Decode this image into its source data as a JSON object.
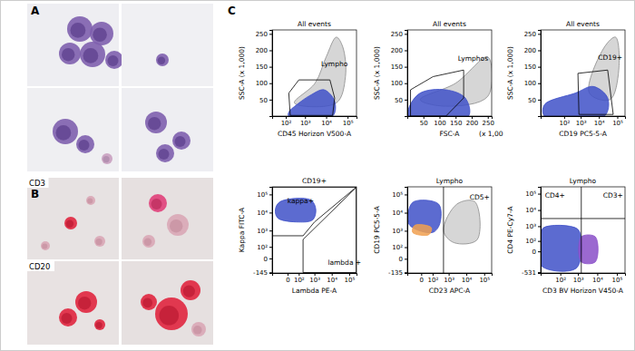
{
  "panels": [
    {
      "label": "A"
    },
    {
      "label": "B",
      "rows": [
        "CD3",
        "CD20"
      ]
    },
    {
      "label": "C"
    }
  ],
  "chart_data": [
    {
      "type": "scatter",
      "title": "All events",
      "xlabel": "CD45 Horizon V500-A",
      "ylabel": "SSC-A (x 1,000)",
      "log": "x",
      "xlim": [
        0,
        262144
      ],
      "ylim": [
        0,
        262
      ],
      "xticks": [
        {
          "value": 100,
          "label": "10²"
        },
        {
          "value": 1000,
          "label": "10³"
        },
        {
          "value": 10000,
          "label": "10⁴"
        },
        {
          "value": 100000,
          "label": "10⁵"
        }
      ],
      "yticks": [
        50,
        100,
        150,
        200,
        250
      ],
      "clouds": [
        {
          "color": "#8a8a8a",
          "x": [
            300,
            3000,
            10000,
            30000,
            60000,
            80000,
            30000
          ],
          "y": [
            40,
            100,
            180,
            240,
            210,
            120,
            40
          ]
        },
        {
          "color": "#3f51c8",
          "x": [
            150,
            20000,
            25000,
            8000,
            2000,
            400,
            150
          ],
          "y": [
            0,
            0,
            45,
            80,
            65,
            35,
            12
          ]
        }
      ],
      "gates": [
        {
          "label": "Lympho",
          "x": [
            180,
            150,
            500,
            15000,
            25000,
            20000,
            180
          ],
          "y": [
            2,
            70,
            110,
            110,
            55,
            2,
            2
          ]
        }
      ]
    },
    {
      "type": "scatter",
      "title": "All events",
      "xlabel": "FSC-A",
      "ylabel": "SSC-A (x 1,000)",
      "annotations": [
        {
          "text": "(x 1,00"
        }
      ],
      "xlim": [
        0,
        262
      ],
      "ylim": [
        0,
        262
      ],
      "xticks": [
        50,
        100,
        150,
        200,
        250
      ],
      "yticks": [
        50,
        100,
        150,
        200,
        250
      ],
      "clouds": [
        {
          "color": "#8a8a8a",
          "x": [
            40,
            150,
            250,
            250,
            120
          ],
          "y": [
            50,
            100,
            180,
            60,
            30
          ]
        },
        {
          "color": "#3f51c8",
          "x": [
            5,
            190,
            180,
            120,
            40,
            5
          ],
          "y": [
            0,
            0,
            55,
            80,
            70,
            25
          ]
        }
      ],
      "gates": [
        {
          "label": "Lymphos",
          "x": [
            10,
            10,
            80,
            175,
            175,
            120,
            10
          ],
          "y": [
            0,
            80,
            120,
            140,
            55,
            0,
            0
          ]
        }
      ]
    },
    {
      "type": "scatter",
      "title": "All events",
      "xlabel": "CD19 PC5-5-A",
      "ylabel": "SSC-A (x 1,000)",
      "log": "x",
      "xlim": [
        -100,
        262144
      ],
      "ylim": [
        0,
        262
      ],
      "xticks": [
        {
          "value": 100,
          "label": "10²"
        },
        {
          "value": 1000,
          "label": "10³"
        },
        {
          "value": 10000,
          "label": "10⁴"
        },
        {
          "value": 100000,
          "label": "10⁵"
        }
      ],
      "yticks": [
        50,
        100,
        150,
        200,
        250
      ],
      "clouds": [
        {
          "color": "#8a8a8a",
          "x": [
            3000,
            20000,
            80000,
            120000,
            40000
          ],
          "y": [
            70,
            210,
            240,
            140,
            50
          ]
        },
        {
          "color": "#3f51c8",
          "x": [
            -50,
            20000,
            30000,
            5000,
            500,
            -50
          ],
          "y": [
            0,
            0,
            55,
            90,
            70,
            35
          ]
        }
      ],
      "gates": [
        {
          "label": "CD19+",
          "x": [
            800,
            700,
            30000,
            60000,
            800
          ],
          "y": [
            5,
            130,
            140,
            5,
            5
          ]
        }
      ]
    },
    {
      "type": "scatter",
      "title": "CD19+",
      "xlabel": "Lambda PE-A",
      "ylabel": "Kappa FITC-A",
      "log": true,
      "xlim": [
        -200,
        262144
      ],
      "ylim": [
        -160,
        262144
      ],
      "xticks": [
        0,
        {
          "value": 100,
          "label": "10²"
        },
        {
          "value": 1000,
          "label": "10³"
        },
        {
          "value": 10000,
          "label": "10⁴"
        },
        {
          "value": 100000,
          "label": "10⁵"
        }
      ],
      "yticks": [
        -145,
        0,
        {
          "value": 100,
          "label": "10²"
        },
        {
          "value": 1000,
          "label": "10³"
        },
        {
          "value": 10000,
          "label": "10⁴"
        },
        {
          "value": 100000,
          "label": "10⁵"
        }
      ],
      "clouds": [
        {
          "color": "#3f51c8",
          "x": [
            -80,
            100,
            800,
            1200,
            600,
            -50,
            -120
          ],
          "y": [
            5000,
            3000,
            4000,
            15000,
            50000,
            40000,
            15000
          ]
        }
      ],
      "gates": [
        {
          "label": "kappa+",
          "x": [
            -190,
            -190,
            250000,
            1000,
            200,
            -190
          ],
          "y": [
            500,
            250000,
            250000,
            3000,
            500,
            500
          ]
        },
        {
          "label": "lambda +",
          "x": [
            200,
            250000,
            250000,
            200,
            200
          ],
          "y": [
            300,
            240000,
            -150,
            -150,
            300
          ]
        }
      ]
    },
    {
      "type": "scatter",
      "title": "Lympho",
      "xlabel": "CD23 APC-A",
      "ylabel": "CD19 PC5-5-A",
      "log": true,
      "xlim": [
        -150,
        262144
      ],
      "ylim": [
        -150,
        262144
      ],
      "xticks": [
        0,
        {
          "value": 100,
          "label": "10²"
        },
        {
          "value": 1000,
          "label": "10³"
        },
        {
          "value": 10000,
          "label": "10⁴"
        },
        {
          "value": 100000,
          "label": "10⁵"
        }
      ],
      "yticks": [
        -135,
        0,
        {
          "value": 100,
          "label": "10²"
        },
        {
          "value": 1000,
          "label": "10³"
        },
        {
          "value": 10000,
          "label": "10⁴"
        },
        {
          "value": 100000,
          "label": "10⁵"
        }
      ],
      "clouds": [
        {
          "color": "#8a8a8a",
          "x": [
            500,
            3000,
            30000,
            40000,
            2000
          ],
          "y": [
            1000,
            30000,
            40000,
            300,
            200
          ]
        },
        {
          "color": "#3f51c8",
          "x": [
            -100,
            100,
            300,
            250,
            -50,
            -130
          ],
          "y": [
            2000,
            800,
            2500,
            30000,
            40000,
            10000
          ]
        },
        {
          "color": "#f0a050",
          "x": [
            -60,
            50,
            80,
            -40
          ],
          "y": [
            800,
            600,
            1500,
            2000
          ]
        }
      ],
      "gates": [
        {
          "label": "CD5+",
          "x": [
            500,
            500
          ],
          "y": [
            -150,
            262144
          ]
        }
      ]
    },
    {
      "type": "scatter",
      "title": "Lympho",
      "xlabel": "CD3 BV Horizon V450-A",
      "ylabel": "CD4 PE-Cy7-A",
      "log": true,
      "xlim": [
        -40,
        262144
      ],
      "ylim": [
        -600,
        262144
      ],
      "xticks": [
        {
          "value": 100,
          "label": "10²"
        },
        {
          "value": 1000,
          "label": "10³"
        },
        {
          "value": 10000,
          "label": "10⁴"
        },
        {
          "value": 100000,
          "label": "10⁵"
        }
      ],
      "yticks": [
        -531,
        0,
        {
          "value": 100,
          "label": "10²"
        },
        {
          "value": 1000,
          "label": "10³"
        },
        {
          "value": 10000,
          "label": "10⁴"
        },
        {
          "value": 100000,
          "label": "10⁵"
        }
      ],
      "clouds": [
        {
          "color": "#3f51c8",
          "x": [
            -35,
            800,
            1500,
            900,
            -20,
            -38
          ],
          "y": [
            -200,
            -300,
            100,
            700,
            800,
            200
          ]
        },
        {
          "color": "#8a4fc8",
          "x": [
            1500,
            8000,
            8000,
            1500
          ],
          "y": [
            -100,
            -100,
            200,
            200
          ]
        }
      ],
      "gates": [
        {
          "label": "CD4+",
          "x": [
            -40,
            262144
          ],
          "y": [
            3000,
            3000
          ]
        },
        {
          "label": "CD3+",
          "x": [
            1500,
            1500
          ],
          "y": [
            -600,
            262144
          ]
        }
      ]
    }
  ]
}
